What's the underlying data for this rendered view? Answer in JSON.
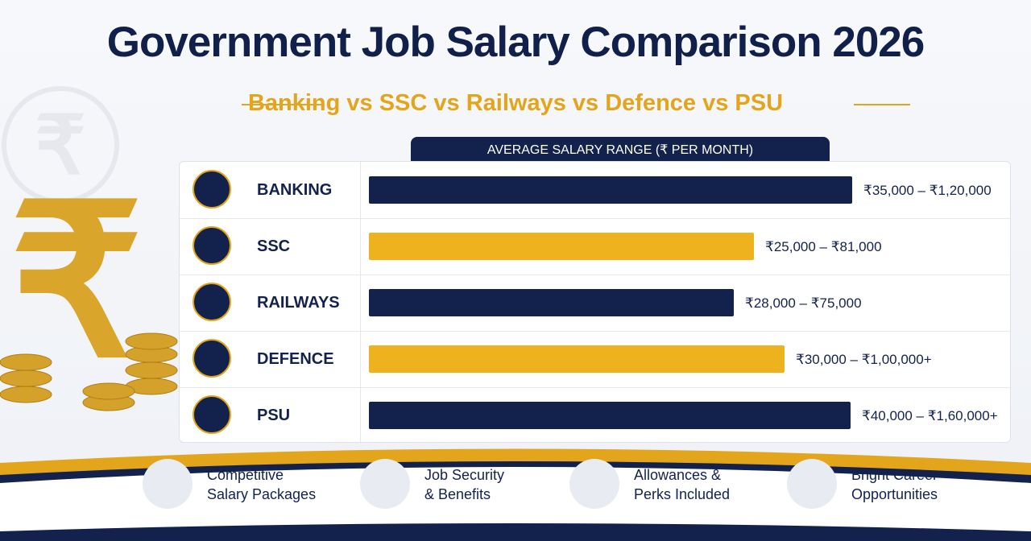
{
  "header": {
    "title": "Government Job Salary Comparison 2026",
    "subtitle": "Banking vs SSC vs Railways vs Defence vs PSU"
  },
  "table": {
    "heading": "AVERAGE SALARY RANGE (₹ PER MONTH)",
    "rows": [
      {
        "label": "BANKING",
        "range": "₹35,000 – ₹1,20,000"
      },
      {
        "label": "SSC",
        "range": "₹25,000 – ₹81,000"
      },
      {
        "label": "RAILWAYS",
        "range": "₹28,000 – ₹75,000"
      },
      {
        "label": "DEFENCE",
        "range": "₹30,000 – ₹1,00,000+"
      },
      {
        "label": "PSU",
        "range": "₹40,000 – ₹1,60,000+"
      }
    ]
  },
  "features": [
    {
      "lines": [
        "Competitive",
        "Salary Packages"
      ]
    },
    {
      "lines": [
        "Job Security",
        "& Benefits"
      ]
    },
    {
      "lines": [
        "Allowances &",
        "Perks Included"
      ]
    },
    {
      "lines": [
        "Bright Career",
        "Opportunities"
      ]
    }
  ]
}
